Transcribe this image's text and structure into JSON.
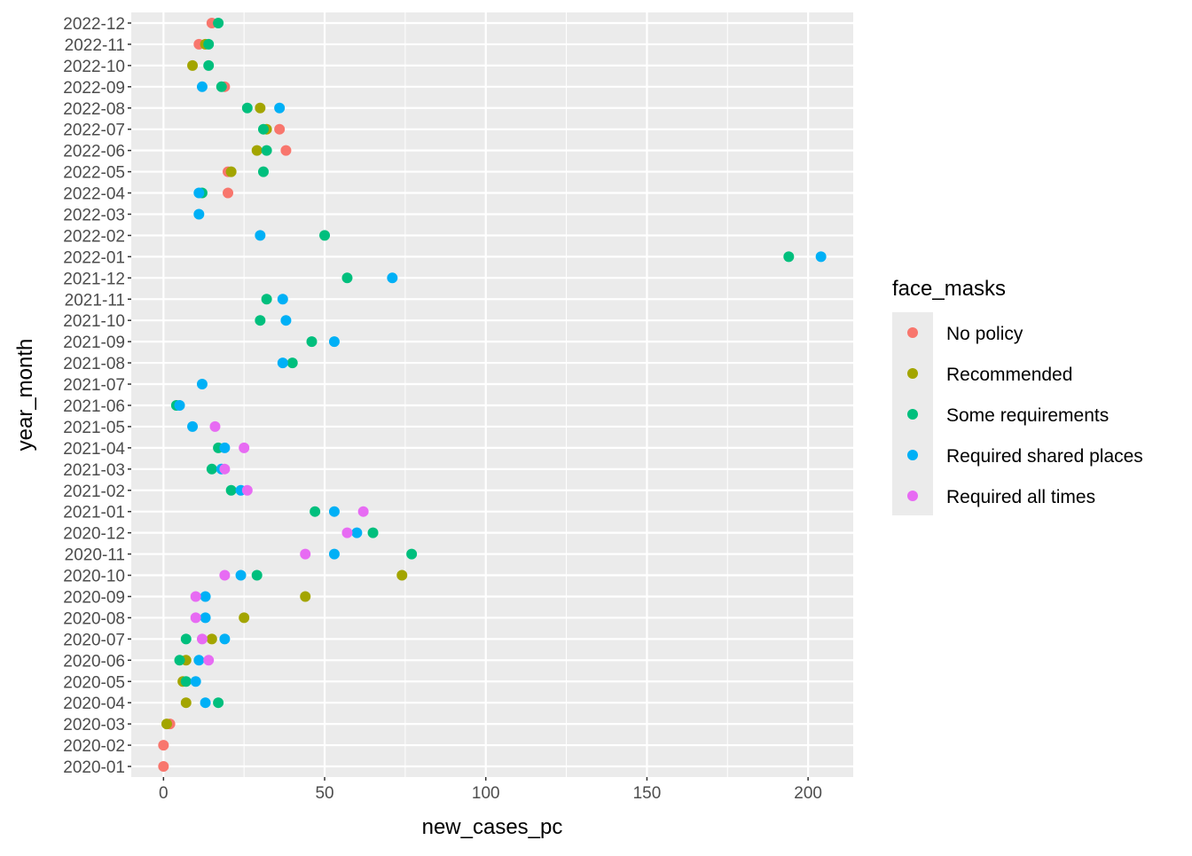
{
  "chart_data": {
    "type": "scatter",
    "title": "",
    "xlabel": "new_cases_pc",
    "ylabel": "year_month",
    "xlim": [
      -10,
      214
    ],
    "x_ticks": [
      0,
      50,
      100,
      150,
      200
    ],
    "grid": true,
    "legend_position": "right",
    "categories": [
      "2020-01",
      "2020-02",
      "2020-03",
      "2020-04",
      "2020-05",
      "2020-06",
      "2020-07",
      "2020-08",
      "2020-09",
      "2020-10",
      "2020-11",
      "2020-12",
      "2021-01",
      "2021-02",
      "2021-03",
      "2021-04",
      "2021-05",
      "2021-06",
      "2021-07",
      "2021-08",
      "2021-09",
      "2021-10",
      "2021-11",
      "2021-12",
      "2022-01",
      "2022-02",
      "2022-03",
      "2022-04",
      "2022-05",
      "2022-06",
      "2022-07",
      "2022-08",
      "2022-09",
      "2022-10",
      "2022-11",
      "2022-12"
    ],
    "legend": {
      "title": "face_masks",
      "entries": [
        "No policy",
        "Recommended",
        "Some requirements",
        "Required shared places",
        "Required all times"
      ]
    },
    "colors": {
      "No policy": "#F8766D",
      "Recommended": "#A3A500",
      "Some requirements": "#00BF7D",
      "Required shared places": "#00B0F6",
      "Required all times": "#E76BF3"
    },
    "series": [
      {
        "name": "No policy",
        "points": [
          [
            "2020-01",
            0
          ],
          [
            "2020-02",
            0
          ],
          [
            "2020-03",
            2
          ],
          [
            "2022-04",
            20
          ],
          [
            "2022-05",
            20
          ],
          [
            "2022-06",
            38
          ],
          [
            "2022-07",
            36
          ],
          [
            "2022-09",
            19
          ],
          [
            "2022-11",
            11
          ],
          [
            "2022-12",
            15
          ]
        ]
      },
      {
        "name": "Recommended",
        "points": [
          [
            "2020-03",
            1
          ],
          [
            "2020-04",
            7
          ],
          [
            "2020-05",
            6
          ],
          [
            "2020-06",
            7
          ],
          [
            "2020-07",
            15
          ],
          [
            "2020-08",
            25
          ],
          [
            "2020-09",
            44
          ],
          [
            "2020-10",
            74
          ],
          [
            "2022-05",
            21
          ],
          [
            "2022-06",
            29
          ],
          [
            "2022-07",
            32
          ],
          [
            "2022-08",
            30
          ],
          [
            "2022-10",
            9
          ],
          [
            "2022-11",
            13
          ]
        ]
      },
      {
        "name": "Some requirements",
        "points": [
          [
            "2020-04",
            17
          ],
          [
            "2020-05",
            7
          ],
          [
            "2020-06",
            5
          ],
          [
            "2020-07",
            7
          ],
          [
            "2020-10",
            29
          ],
          [
            "2020-11",
            77
          ],
          [
            "2020-12",
            65
          ],
          [
            "2021-01",
            47
          ],
          [
            "2021-02",
            21
          ],
          [
            "2021-03",
            15
          ],
          [
            "2021-04",
            17
          ],
          [
            "2021-06",
            4
          ],
          [
            "2021-08",
            40
          ],
          [
            "2021-09",
            46
          ],
          [
            "2021-10",
            30
          ],
          [
            "2021-11",
            32
          ],
          [
            "2021-12",
            57
          ],
          [
            "2022-01",
            194
          ],
          [
            "2022-02",
            50
          ],
          [
            "2022-04",
            12
          ],
          [
            "2022-05",
            31
          ],
          [
            "2022-06",
            32
          ],
          [
            "2022-07",
            31
          ],
          [
            "2022-08",
            26
          ],
          [
            "2022-09",
            18
          ],
          [
            "2022-10",
            14
          ],
          [
            "2022-11",
            14
          ],
          [
            "2022-12",
            17
          ]
        ]
      },
      {
        "name": "Required shared places",
        "points": [
          [
            "2020-04",
            13
          ],
          [
            "2020-05",
            10
          ],
          [
            "2020-06",
            11
          ],
          [
            "2020-07",
            19
          ],
          [
            "2020-08",
            13
          ],
          [
            "2020-09",
            13
          ],
          [
            "2020-10",
            24
          ],
          [
            "2020-11",
            53
          ],
          [
            "2020-12",
            60
          ],
          [
            "2021-01",
            53
          ],
          [
            "2021-02",
            24
          ],
          [
            "2021-03",
            18
          ],
          [
            "2021-04",
            19
          ],
          [
            "2021-05",
            9
          ],
          [
            "2021-06",
            5
          ],
          [
            "2021-07",
            12
          ],
          [
            "2021-08",
            37
          ],
          [
            "2021-09",
            53
          ],
          [
            "2021-10",
            38
          ],
          [
            "2021-11",
            37
          ],
          [
            "2021-12",
            71
          ],
          [
            "2022-01",
            204
          ],
          [
            "2022-02",
            30
          ],
          [
            "2022-03",
            11
          ],
          [
            "2022-04",
            11
          ],
          [
            "2022-08",
            36
          ],
          [
            "2022-09",
            12
          ]
        ]
      },
      {
        "name": "Required all times",
        "points": [
          [
            "2020-06",
            14
          ],
          [
            "2020-07",
            12
          ],
          [
            "2020-08",
            10
          ],
          [
            "2020-09",
            10
          ],
          [
            "2020-10",
            19
          ],
          [
            "2020-11",
            44
          ],
          [
            "2020-12",
            57
          ],
          [
            "2021-01",
            62
          ],
          [
            "2021-02",
            26
          ],
          [
            "2021-03",
            19
          ],
          [
            "2021-04",
            25
          ],
          [
            "2021-05",
            16
          ]
        ]
      }
    ]
  }
}
